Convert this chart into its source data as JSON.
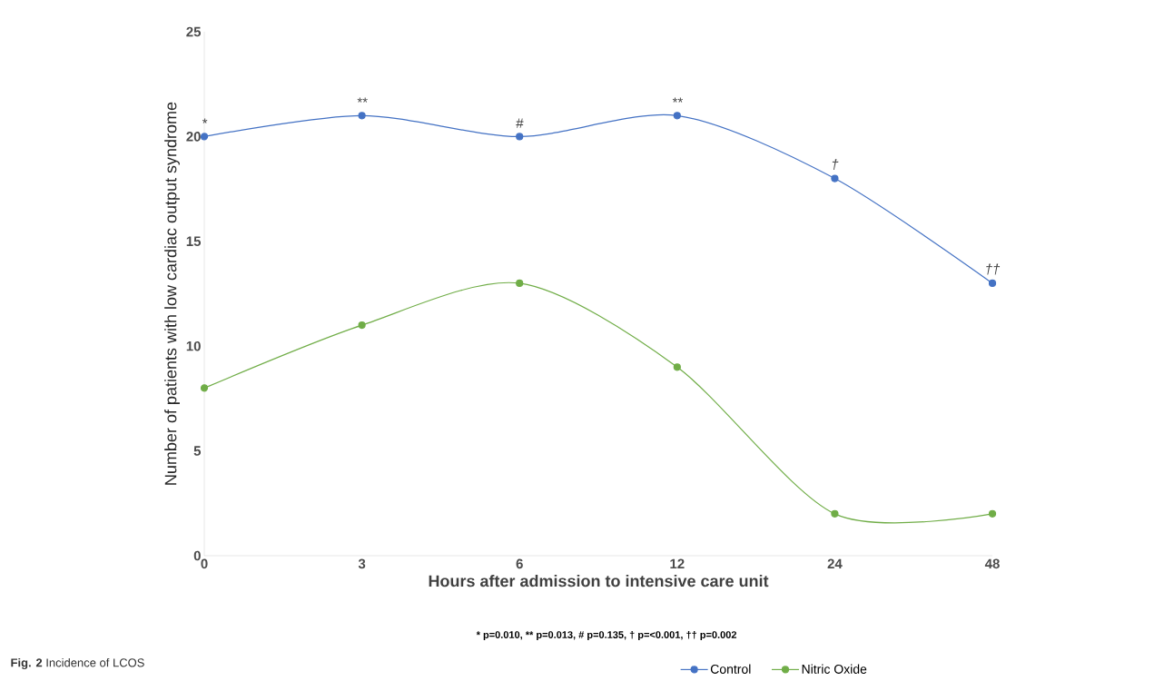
{
  "chart_data": {
    "type": "line",
    "xlabel": "Hours after admission to intensive care unit",
    "ylabel": "Number of patients with low cardiac output syndrome",
    "categories": [
      "0",
      "3",
      "6",
      "12",
      "24",
      "48"
    ],
    "series": [
      {
        "name": "Control",
        "color": "#4472c4",
        "values": [
          20,
          21,
          20,
          21,
          18,
          13
        ]
      },
      {
        "name": "Nitric Oxide",
        "color": "#70ad47",
        "values": [
          8,
          11,
          13,
          9,
          2,
          2
        ]
      }
    ],
    "ylim": [
      0,
      25
    ],
    "yticks": [
      0,
      5,
      10,
      15,
      20,
      25
    ],
    "marker": "circle",
    "legend": "bottom",
    "grid": false,
    "annotations": [
      {
        "text": "*",
        "x": "0",
        "y": 20
      },
      {
        "text": "**",
        "x": "3",
        "y": 21
      },
      {
        "text": "#",
        "x": "6",
        "y": 20
      },
      {
        "text": "**",
        "x": "12",
        "y": 21
      },
      {
        "text": "†",
        "x": "24",
        "y": 18
      },
      {
        "text": "††",
        "x": "48",
        "y": 13
      },
      "* p=0.010, ** p=0.013, # p=0.135, † p=<0.001, †† p=0.002",
      "**Fig. 2** Incidence of LCOS"
    ]
  }
}
